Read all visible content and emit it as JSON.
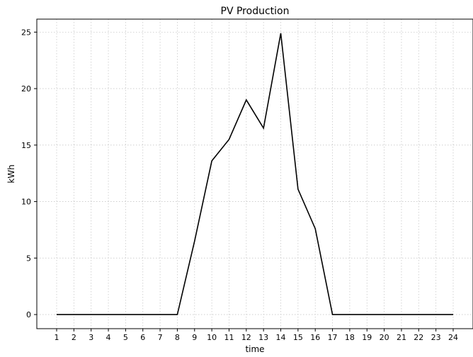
{
  "chart_data": {
    "type": "line",
    "title": "PV Production",
    "xlabel": "time",
    "ylabel": "kWh",
    "x": [
      1,
      2,
      3,
      4,
      5,
      6,
      7,
      8,
      9,
      10,
      11,
      12,
      13,
      14,
      15,
      16,
      17,
      18,
      19,
      20,
      21,
      22,
      23,
      24
    ],
    "series": [
      {
        "values": [
          0,
          0,
          0,
          0,
          0,
          0,
          0,
          0,
          6.5,
          13.6,
          15.5,
          19.0,
          16.5,
          24.9,
          11.1,
          7.6,
          0,
          0,
          0,
          0,
          0,
          0,
          0,
          0
        ],
        "color": "#000000"
      }
    ],
    "xticks": [
      "1",
      "2",
      "3",
      "4",
      "5",
      "6",
      "7",
      "8",
      "9",
      "10",
      "11",
      "12",
      "13",
      "14",
      "15",
      "16",
      "17",
      "18",
      "19",
      "20",
      "21",
      "22",
      "23",
      "24"
    ],
    "yticks": [
      "0",
      "5",
      "10",
      "15",
      "20",
      "25"
    ],
    "xlim": [
      -0.15,
      25.15
    ],
    "ylim": [
      -1.25,
      26.15
    ],
    "grid": true
  }
}
